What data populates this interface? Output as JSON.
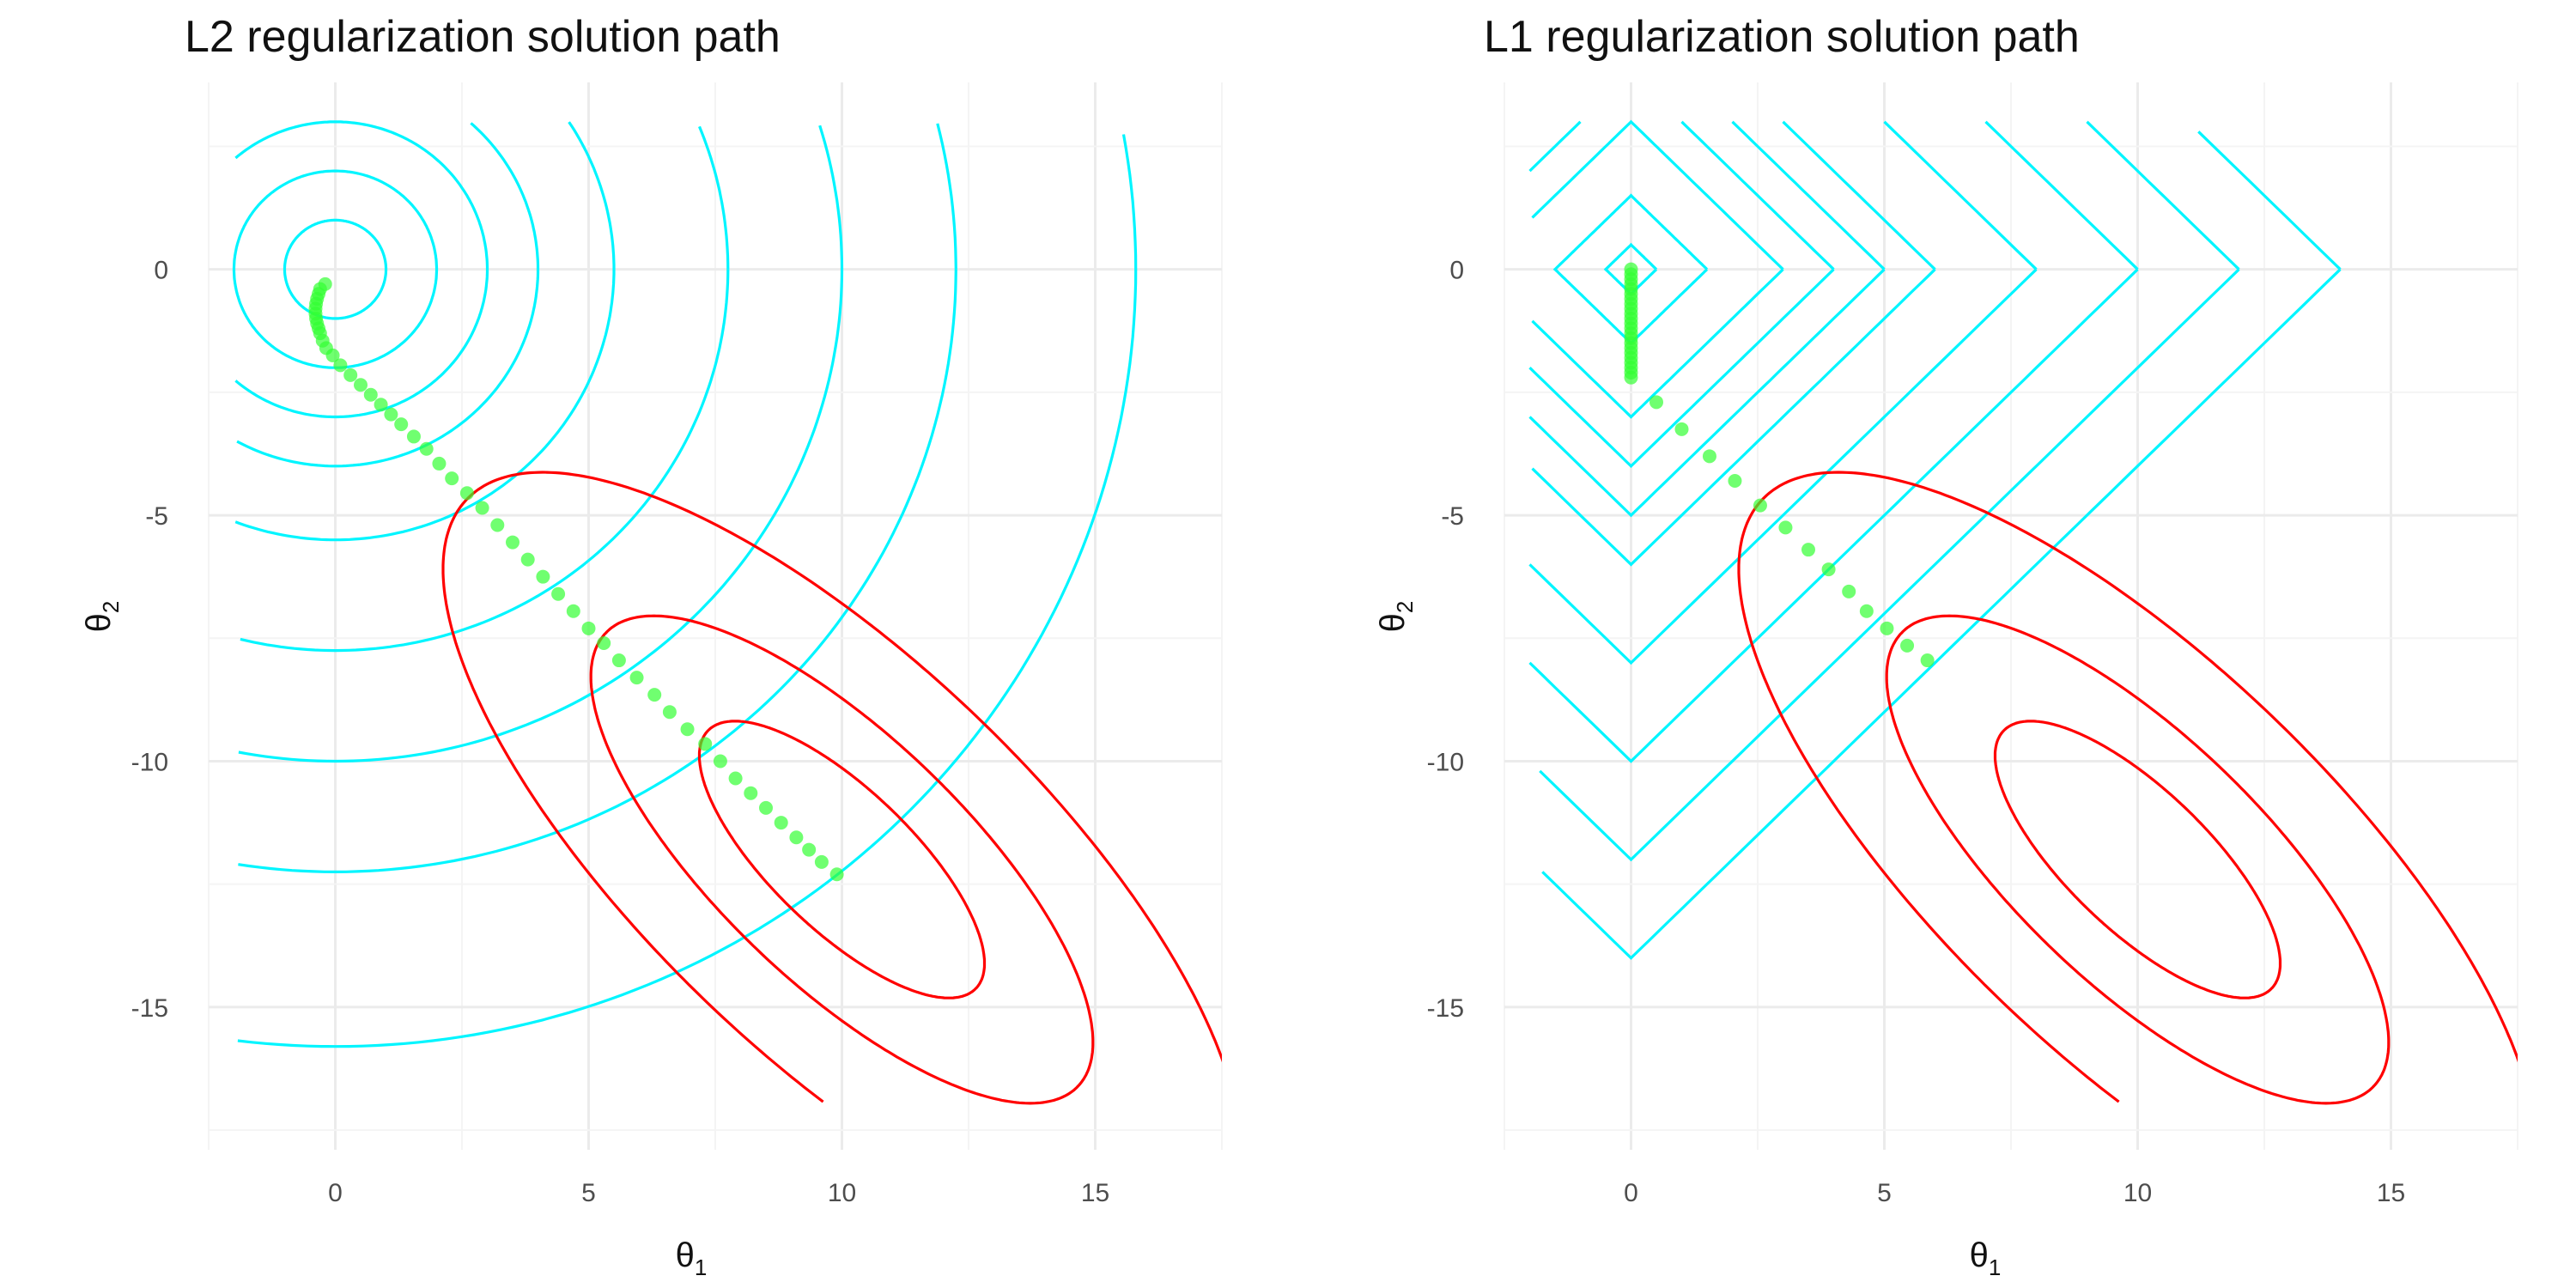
{
  "chart_data": [
    {
      "type": "contour",
      "title": "L2 regularization solution path",
      "xlabel": "θ",
      "xlabel_sub": "1",
      "ylabel": "θ",
      "ylabel_sub": "2",
      "xlim": [
        -2.5,
        17.5
      ],
      "ylim": [
        -17.9,
        3.8
      ],
      "x_ticks": [
        0,
        5,
        10,
        15
      ],
      "x_tick_labels": [
        "0",
        "5",
        "10",
        "15"
      ],
      "y_ticks": [
        0,
        -5,
        -10,
        -15
      ],
      "y_tick_labels": [
        "0",
        "-5",
        "-10",
        "-15"
      ],
      "grid": true,
      "penalty": "l2",
      "penalty_levels": [
        1,
        2,
        3,
        4,
        5.5,
        7.75,
        10,
        12.25,
        15.8
      ],
      "penalty_color": "#00f5ff",
      "loss_ellipses": {
        "levels": [
          [
            2.63,
            -4.64
          ],
          [
            5.29,
            -7.45
          ],
          [
            7.3,
            -9.45
          ]
        ],
        "color": "#ff0000"
      },
      "path": {
        "color": "#33ff33",
        "points": [
          [
            -0.2,
            -0.3
          ],
          [
            -0.3,
            -0.4
          ],
          [
            -0.33,
            -0.5
          ],
          [
            -0.36,
            -0.6
          ],
          [
            -0.38,
            -0.7
          ],
          [
            -0.39,
            -0.8
          ],
          [
            -0.39,
            -0.9
          ],
          [
            -0.38,
            -1.0
          ],
          [
            -0.36,
            -1.1
          ],
          [
            -0.33,
            -1.2
          ],
          [
            -0.3,
            -1.3
          ],
          [
            -0.25,
            -1.45
          ],
          [
            -0.18,
            -1.6
          ],
          [
            -0.05,
            -1.75
          ],
          [
            0.1,
            -1.95
          ],
          [
            0.3,
            -2.15
          ],
          [
            0.5,
            -2.35
          ],
          [
            0.7,
            -2.55
          ],
          [
            0.9,
            -2.75
          ],
          [
            1.1,
            -2.95
          ],
          [
            1.3,
            -3.15
          ],
          [
            1.55,
            -3.4
          ],
          [
            1.8,
            -3.65
          ],
          [
            2.05,
            -3.95
          ],
          [
            2.3,
            -4.25
          ],
          [
            2.6,
            -4.55
          ],
          [
            2.9,
            -4.85
          ],
          [
            3.2,
            -5.2
          ],
          [
            3.5,
            -5.55
          ],
          [
            3.8,
            -5.9
          ],
          [
            4.1,
            -6.25
          ],
          [
            4.4,
            -6.6
          ],
          [
            4.7,
            -6.95
          ],
          [
            5.0,
            -7.3
          ],
          [
            5.3,
            -7.6
          ],
          [
            5.6,
            -7.95
          ],
          [
            5.95,
            -8.3
          ],
          [
            6.3,
            -8.65
          ],
          [
            6.6,
            -9.0
          ],
          [
            6.95,
            -9.35
          ],
          [
            7.3,
            -9.65
          ],
          [
            7.6,
            -10.0
          ],
          [
            7.9,
            -10.35
          ],
          [
            8.2,
            -10.65
          ],
          [
            8.5,
            -10.95
          ],
          [
            8.8,
            -11.25
          ],
          [
            9.1,
            -11.55
          ],
          [
            9.35,
            -11.8
          ],
          [
            9.6,
            -12.05
          ],
          [
            9.9,
            -12.3
          ]
        ]
      }
    },
    {
      "type": "contour",
      "title": "L1 regularization solution path",
      "xlabel": "θ",
      "xlabel_sub": "1",
      "ylabel": "θ",
      "ylabel_sub": "2",
      "xlim": [
        -2.5,
        17.5
      ],
      "ylim": [
        -17.9,
        3.8
      ],
      "x_ticks": [
        0,
        5,
        10,
        15
      ],
      "x_tick_labels": [
        "0",
        "5",
        "10",
        "15"
      ],
      "y_ticks": [
        0,
        -5,
        -10,
        -15
      ],
      "y_tick_labels": [
        "0",
        "-5",
        "-10",
        "-15"
      ],
      "grid": true,
      "penalty": "l1",
      "penalty_levels": [
        0.5,
        1.5,
        3,
        4,
        5,
        6,
        8,
        10,
        12,
        14
      ],
      "penalty_color": "#00f5ff",
      "loss_ellipses": {
        "levels": [
          [
            2.63,
            -4.64
          ],
          [
            5.29,
            -7.45
          ],
          [
            7.3,
            -9.45
          ]
        ],
        "color": "#ff0000"
      },
      "path": {
        "color": "#33ff33",
        "points": [
          [
            0,
            0
          ],
          [
            0,
            -0.1
          ],
          [
            0,
            -0.2
          ],
          [
            0,
            -0.3
          ],
          [
            0,
            -0.4
          ],
          [
            0,
            -0.5
          ],
          [
            0,
            -0.6
          ],
          [
            0,
            -0.7
          ],
          [
            0,
            -0.8
          ],
          [
            0,
            -0.9
          ],
          [
            0,
            -1.0
          ],
          [
            0,
            -1.1
          ],
          [
            0,
            -1.2
          ],
          [
            0,
            -1.3
          ],
          [
            0,
            -1.4
          ],
          [
            0,
            -1.5
          ],
          [
            0,
            -1.6
          ],
          [
            0,
            -1.7
          ],
          [
            0,
            -1.8
          ],
          [
            0,
            -1.9
          ],
          [
            0,
            -2.0
          ],
          [
            0,
            -2.1
          ],
          [
            0,
            -2.2
          ],
          [
            0.5,
            -2.7
          ],
          [
            1.0,
            -3.25
          ],
          [
            1.55,
            -3.8
          ],
          [
            2.05,
            -4.3
          ],
          [
            2.55,
            -4.8
          ],
          [
            3.05,
            -5.25
          ],
          [
            3.5,
            -5.7
          ],
          [
            3.9,
            -6.1
          ],
          [
            4.3,
            -6.55
          ],
          [
            4.65,
            -6.95
          ],
          [
            5.05,
            -7.3
          ],
          [
            5.45,
            -7.65
          ],
          [
            5.85,
            -7.95
          ]
        ]
      }
    }
  ]
}
